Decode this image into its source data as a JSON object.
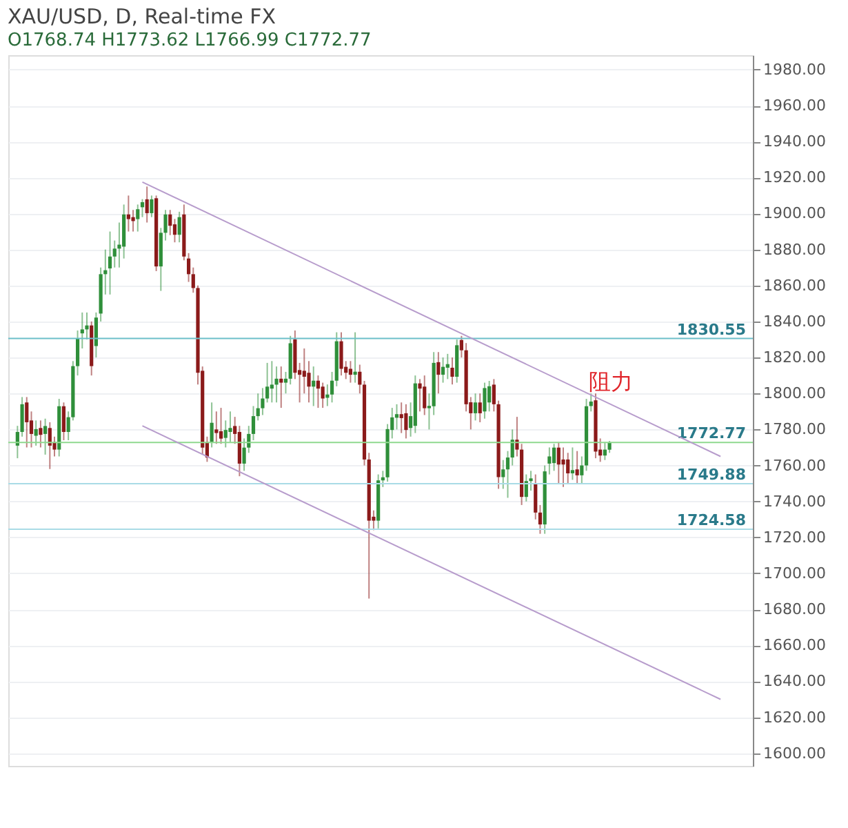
{
  "chart_data": {
    "type": "candlestick",
    "title": "XAU/USD, D, Real-time FX",
    "subtitle": "O1768.74  H1773.62  L1766.99  C1772.77",
    "categories": [
      null,
      null,
      null,
      null,
      null,
      null,
      null,
      null,
      null,
      null,
      null,
      null,
      null,
      null,
      null,
      null,
      null,
      null,
      null,
      null,
      null,
      null,
      null,
      null,
      null,
      null,
      null,
      null,
      null,
      null,
      null,
      null,
      null,
      null,
      null,
      null,
      null,
      null,
      null,
      null,
      null,
      null,
      null,
      null,
      null,
      null,
      null,
      null,
      null,
      null,
      null,
      null,
      null,
      null,
      null,
      null,
      null,
      null,
      null,
      null,
      null,
      null,
      null,
      null,
      null,
      null,
      null,
      null,
      null,
      null,
      null,
      null,
      null,
      null,
      null,
      null,
      null,
      null,
      null,
      null,
      null,
      null,
      null,
      null,
      null,
      null,
      null,
      null,
      null,
      null,
      null,
      null,
      null,
      null,
      null,
      null,
      null,
      null,
      null,
      null,
      null,
      null,
      null,
      null,
      null,
      null,
      null,
      null,
      null,
      null,
      null,
      null,
      null,
      null,
      null,
      null,
      null,
      null,
      null,
      null,
      null,
      null,
      null,
      null,
      null,
      null,
      null,
      null,
      null,
      null,
      null,
      null,
      null,
      null,
      null,
      null,
      null,
      null,
      null,
      null,
      null,
      null,
      null,
      null,
      null,
      null,
      null,
      null,
      null,
      null,
      null,
      null,
      null,
      null,
      null,
      null,
      null,
      null
    ],
    "ohlc": [
      [
        1771,
        1782,
        1764,
        1778.6
      ],
      [
        1778.6,
        1798,
        1776,
        1794
      ],
      [
        1795,
        1798,
        1770,
        1784
      ],
      [
        1785,
        1790,
        1770,
        1777.5
      ],
      [
        1776.5,
        1785,
        1771,
        1780.2
      ],
      [
        1780.8,
        1785,
        1770,
        1777
      ],
      [
        1777.5,
        1786,
        1766,
        1781.9
      ],
      [
        1780.8,
        1784,
        1758,
        1771
      ],
      [
        1773,
        1776,
        1765,
        1768.8
      ],
      [
        1768.8,
        1797,
        1765,
        1792.9
      ],
      [
        1792.9,
        1795,
        1774,
        1778.6
      ],
      [
        1778.6,
        1790,
        1774,
        1786.8
      ],
      [
        1786.8,
        1818,
        1785,
        1815.2
      ],
      [
        1815.2,
        1835,
        1810,
        1830.6
      ],
      [
        1833.4,
        1845,
        1825,
        1835.6
      ],
      [
        1835.6,
        1845,
        1830,
        1837.8
      ],
      [
        1837.8,
        1840,
        1810,
        1815.2
      ],
      [
        1826.4,
        1845,
        1820,
        1842.2
      ],
      [
        1844.4,
        1870,
        1840,
        1866.3
      ],
      [
        1866.3,
        1880,
        1855,
        1868.5
      ],
      [
        1869.5,
        1890,
        1855,
        1876.1
      ],
      [
        1876.1,
        1885,
        1870,
        1880.5
      ],
      [
        1880.5,
        1895,
        1870,
        1882.7
      ],
      [
        1881.6,
        1905,
        1875,
        1899.5
      ],
      [
        1899.5,
        1910,
        1890,
        1896.9
      ],
      [
        1898,
        1902,
        1890,
        1895.8
      ],
      [
        1896.9,
        1905,
        1890,
        1902.4
      ],
      [
        1903.5,
        1908,
        1898,
        1906.3
      ],
      [
        1907.9,
        1915,
        1895,
        1900.2
      ],
      [
        1900.2,
        1910,
        1898,
        1907.9
      ],
      [
        1908.5,
        1910,
        1868,
        1870.6
      ],
      [
        1870.6,
        1892,
        1857,
        1889.3
      ],
      [
        1889.3,
        1902,
        1885,
        1899.5
      ],
      [
        1899.5,
        1902,
        1888,
        1893.2
      ],
      [
        1894,
        1897,
        1884,
        1888.2
      ],
      [
        1888.2,
        1901,
        1884,
        1898
      ],
      [
        1899.5,
        1905,
        1874,
        1876.1
      ],
      [
        1875,
        1878,
        1862,
        1866.3
      ],
      [
        1866.3,
        1870,
        1856,
        1858.6
      ],
      [
        1858.6,
        1860,
        1805,
        1811.5
      ],
      [
        1812.6,
        1815,
        1766,
        1769.9
      ],
      [
        1773,
        1776,
        1762,
        1764.4
      ],
      [
        1773,
        1795,
        1770,
        1783.7
      ],
      [
        1780,
        1790,
        1772,
        1778
      ],
      [
        1779,
        1792,
        1772,
        1774.9
      ],
      [
        1775.3,
        1785,
        1770,
        1779.7
      ],
      [
        1778.6,
        1790,
        1773,
        1780.8
      ],
      [
        1781.9,
        1787,
        1772,
        1777.5
      ],
      [
        1778.6,
        1782,
        1754,
        1761
      ],
      [
        1761,
        1775,
        1757,
        1769.9
      ],
      [
        1769.9,
        1782,
        1767,
        1777.5
      ],
      [
        1777.5,
        1793,
        1774,
        1787.4
      ],
      [
        1787.4,
        1800,
        1785,
        1791.8
      ],
      [
        1791.8,
        1803,
        1788,
        1797.2
      ],
      [
        1797.2,
        1817,
        1795,
        1803.8
      ],
      [
        1802.7,
        1818,
        1795,
        1804.9
      ],
      [
        1804.9,
        1815,
        1795,
        1808.2
      ],
      [
        1808.2,
        1815,
        1792,
        1806
      ],
      [
        1806,
        1812,
        1800,
        1808.2
      ],
      [
        1808.2,
        1832,
        1805,
        1827.9
      ],
      [
        1830.1,
        1835,
        1808,
        1811.5
      ],
      [
        1813,
        1817,
        1795,
        1810.4
      ],
      [
        1812.6,
        1825,
        1800,
        1809.3
      ],
      [
        1811.5,
        1818,
        1795,
        1803.8
      ],
      [
        1803.8,
        1815,
        1793,
        1807.1
      ],
      [
        1807.1,
        1810,
        1792,
        1802.7
      ],
      [
        1803.8,
        1806,
        1792,
        1797.2
      ],
      [
        1797.6,
        1805,
        1793,
        1799.4
      ],
      [
        1799.4,
        1812,
        1795,
        1807.1
      ],
      [
        1807.1,
        1834,
        1804,
        1829
      ],
      [
        1829,
        1834,
        1810,
        1813.7
      ],
      [
        1814.8,
        1818,
        1808,
        1811.5
      ],
      [
        1813.7,
        1818,
        1806,
        1810.4
      ],
      [
        1810.4,
        1834,
        1806,
        1812.1
      ],
      [
        1812.1,
        1816,
        1800,
        1804.9
      ],
      [
        1804.9,
        1807,
        1760,
        1763.3
      ],
      [
        1763.3,
        1767,
        1686,
        1729.3
      ],
      [
        1731.5,
        1735,
        1724,
        1729.3
      ],
      [
        1729.3,
        1755,
        1725,
        1751.7
      ],
      [
        1751.7,
        1757,
        1748,
        1753.4
      ],
      [
        1753.4,
        1783,
        1751,
        1780.2
      ],
      [
        1779.7,
        1792,
        1775,
        1786.7
      ],
      [
        1786.5,
        1794,
        1780,
        1788.5
      ],
      [
        1788.5,
        1795,
        1778,
        1786.3
      ],
      [
        1789,
        1794,
        1775,
        1779.7
      ],
      [
        1780.8,
        1795,
        1776,
        1787.4
      ],
      [
        1782,
        1810,
        1778,
        1805.6
      ],
      [
        1805.6,
        1808,
        1790,
        1802.7
      ],
      [
        1803.8,
        1810,
        1788,
        1791.8
      ],
      [
        1791.8,
        1800,
        1780,
        1793.1
      ],
      [
        1792.9,
        1823,
        1788,
        1817
      ],
      [
        1817.4,
        1823,
        1800,
        1810.4
      ],
      [
        1810.4,
        1820,
        1806,
        1814.8
      ],
      [
        1814.3,
        1822,
        1808,
        1816.3
      ],
      [
        1814.3,
        1820,
        1805,
        1809.3
      ],
      [
        1809.3,
        1830,
        1806,
        1826.8
      ],
      [
        1829.7,
        1832,
        1820,
        1824
      ],
      [
        1824,
        1828,
        1790,
        1794
      ],
      [
        1795.1,
        1798,
        1780,
        1789
      ],
      [
        1789,
        1800,
        1785,
        1795
      ],
      [
        1795,
        1800,
        1784,
        1789
      ],
      [
        1790,
        1806,
        1786,
        1803
      ],
      [
        1795,
        1807,
        1790,
        1804
      ],
      [
        1804.9,
        1808,
        1790,
        1794
      ],
      [
        1794,
        1796,
        1747,
        1753.5
      ],
      [
        1753.5,
        1763,
        1747,
        1757.8
      ],
      [
        1757.8,
        1768,
        1742,
        1764.4
      ],
      [
        1764.4,
        1780,
        1760,
        1774.3
      ],
      [
        1774.3,
        1787,
        1765,
        1768.8
      ],
      [
        1768.8,
        1772,
        1738,
        1742.5
      ],
      [
        1742.5,
        1755,
        1740,
        1751.3
      ],
      [
        1751.3,
        1757,
        1746,
        1752.8
      ],
      [
        1750.2,
        1755,
        1730,
        1733.8
      ],
      [
        1733.8,
        1738,
        1722,
        1727.2
      ],
      [
        1727.2,
        1760,
        1722,
        1756.7
      ],
      [
        1761,
        1770,
        1755,
        1765
      ],
      [
        1761.3,
        1772,
        1757,
        1769.9
      ],
      [
        1769.9,
        1773,
        1750,
        1760.5
      ],
      [
        1763.3,
        1770,
        1748,
        1760.5
      ],
      [
        1763.3,
        1767,
        1750,
        1755.6
      ],
      [
        1755.6,
        1770,
        1752,
        1757.4
      ],
      [
        1757.8,
        1768,
        1750,
        1754.5
      ],
      [
        1754.5,
        1765,
        1750,
        1760
      ],
      [
        1760,
        1797,
        1757,
        1792.9
      ],
      [
        1793,
        1800,
        1790,
        1795.5
      ],
      [
        1796.2,
        1800,
        1764,
        1767.7
      ],
      [
        1768.8,
        1775,
        1762,
        1765.5
      ],
      [
        1765.5,
        1773,
        1763,
        1768.8
      ],
      [
        1768.74,
        1773.62,
        1766.99,
        1772.77
      ],
      null,
      null,
      null,
      null,
      null,
      null,
      null,
      null,
      null,
      null,
      null,
      null,
      null,
      null,
      null,
      null,
      null,
      null,
      null,
      null,
      null,
      null,
      null,
      null,
      null,
      null,
      null,
      null,
      null
    ],
    "colors": [
      "#2f8f3a",
      "#2f8f3a",
      "#8b1a1a",
      "#8b1a1a",
      "#2f8f3a",
      "#8b1a1a",
      "#2f8f3a",
      "#8b1a1a",
      "#8b1a1a",
      "#2f8f3a",
      "#8b1a1a",
      "#2f8f3a",
      "#2f8f3a",
      "#2f8f3a",
      "#2f8f3a",
      "#2f8f3a",
      "#8b1a1a",
      "#2f8f3a",
      "#2f8f3a",
      "#2f8f3a",
      "#2f8f3a",
      "#2f8f3a",
      "#2f8f3a",
      "#2f8f3a",
      "#8b1a1a",
      "#8b1a1a",
      "#2f8f3a",
      "#2f8f3a",
      "#8b1a1a",
      "#2f8f3a",
      "#8b1a1a",
      "#2f8f3a",
      "#2f8f3a",
      "#8b1a1a",
      "#8b1a1a",
      "#2f8f3a",
      "#8b1a1a",
      "#8b1a1a",
      "#8b1a1a",
      "#8b1a1a",
      "#8b1a1a",
      "#8b1a1a",
      "#2f8f3a",
      "#8b1a1a",
      "#8b1a1a",
      "#2f8f3a",
      "#2f8f3a",
      "#8b1a1a",
      "#8b1a1a",
      "#2f8f3a",
      "#2f8f3a",
      "#2f8f3a",
      "#2f8f3a",
      "#2f8f3a",
      "#2f8f3a",
      "#2f8f3a",
      "#2f8f3a",
      "#8b1a1a",
      "#2f8f3a",
      "#2f8f3a",
      "#8b1a1a",
      "#8b1a1a",
      "#8b1a1a",
      "#8b1a1a",
      "#2f8f3a",
      "#8b1a1a",
      "#8b1a1a",
      "#2f8f3a",
      "#2f8f3a",
      "#2f8f3a",
      "#8b1a1a",
      "#8b1a1a",
      "#8b1a1a",
      "#2f8f3a",
      "#8b1a1a",
      "#8b1a1a",
      "#8b1a1a",
      "#8b1a1a",
      "#2f8f3a",
      "#2f8f3a",
      "#2f8f3a",
      "#2f8f3a",
      "#2f8f3a",
      "#8b1a1a",
      "#8b1a1a",
      "#2f8f3a",
      "#2f8f3a",
      "#8b1a1a",
      "#8b1a1a",
      "#2f8f3a",
      "#2f8f3a",
      "#8b1a1a",
      "#2f8f3a",
      "#2f8f3a",
      "#8b1a1a",
      "#2f8f3a",
      "#8b1a1a",
      "#8b1a1a",
      "#8b1a1a",
      "#2f8f3a",
      "#8b1a1a",
      "#2f8f3a",
      "#2f8f3a",
      "#8b1a1a",
      "#8b1a1a",
      "#2f8f3a",
      "#2f8f3a",
      "#2f8f3a",
      "#8b1a1a",
      "#8b1a1a",
      "#2f8f3a",
      "#2f8f3a",
      "#8b1a1a",
      "#8b1a1a",
      "#2f8f3a",
      "#2f8f3a",
      "#2f8f3a",
      "#8b1a1a",
      "#8b1a1a",
      "#8b1a1a",
      "#2f8f3a",
      "#8b1a1a",
      "#2f8f3a",
      "#2f8f3a",
      "#2f8f3a",
      "#8b1a1a",
      "#8b1a1a",
      "#2f8f3a",
      "#2f8f3a",
      null,
      null,
      null,
      null,
      null,
      null,
      null,
      null,
      null,
      null,
      null,
      null,
      null,
      null,
      null,
      null,
      null,
      null,
      null,
      null,
      null,
      null,
      null,
      null,
      null,
      null,
      null,
      null,
      null
    ],
    "series": [
      {
        "type": "line",
        "color": "#b79ccc",
        "values": [
          null,
          null,
          null,
          null,
          null,
          null,
          null,
          null,
          null,
          null,
          null,
          null,
          null,
          null,
          null,
          null,
          null,
          null,
          null,
          null,
          null,
          null,
          null,
          null,
          null,
          null,
          null,
          1917.5,
          null,
          null,
          null,
          null,
          null,
          null,
          null,
          null,
          null,
          null,
          null,
          null,
          null,
          null,
          null,
          null,
          null,
          null,
          null,
          null,
          null,
          null,
          null,
          null,
          null,
          null,
          null,
          null,
          null,
          null,
          null,
          null,
          null,
          null,
          null,
          null,
          null,
          null,
          null,
          null,
          null,
          null,
          null,
          null,
          null,
          null,
          null,
          null,
          null,
          null,
          null,
          null,
          null,
          null,
          null,
          null,
          null,
          null,
          null,
          null,
          null,
          null,
          null,
          null,
          null,
          null,
          null,
          null,
          null,
          null,
          null,
          null,
          null,
          null,
          null,
          null,
          null,
          null,
          null,
          null,
          null,
          null,
          null,
          null,
          null,
          null,
          null,
          null,
          null,
          null,
          null,
          null,
          null,
          null,
          null,
          null,
          null,
          null,
          null,
          null,
          null,
          null,
          null,
          null,
          null,
          null,
          null,
          null,
          null,
          null,
          null,
          null,
          null,
          null,
          null,
          null,
          null,
          null,
          null,
          null,
          null,
          null,
          null,
          null,
          1765,
          null,
          null,
          null,
          null,
          null
        ]
      },
      {
        "type": "line",
        "color": "#b79ccc",
        "values": [
          null,
          null,
          null,
          null,
          null,
          null,
          null,
          null,
          null,
          null,
          null,
          null,
          null,
          null,
          null,
          null,
          null,
          null,
          null,
          null,
          null,
          null,
          null,
          null,
          null,
          null,
          null,
          1782,
          null,
          null,
          null,
          null,
          null,
          null,
          null,
          null,
          null,
          null,
          null,
          null,
          null,
          null,
          null,
          null,
          null,
          null,
          null,
          null,
          null,
          null,
          null,
          null,
          null,
          null,
          null,
          null,
          null,
          null,
          null,
          null,
          null,
          null,
          null,
          null,
          null,
          null,
          null,
          null,
          null,
          null,
          null,
          null,
          null,
          null,
          null,
          null,
          null,
          null,
          null,
          null,
          null,
          null,
          null,
          null,
          null,
          null,
          null,
          null,
          null,
          null,
          null,
          null,
          null,
          null,
          null,
          null,
          null,
          null,
          null,
          null,
          null,
          null,
          null,
          null,
          null,
          null,
          null,
          null,
          null,
          null,
          null,
          null,
          null,
          null,
          null,
          null,
          null,
          null,
          null,
          null,
          null,
          null,
          null,
          null,
          null,
          null,
          null,
          null,
          null,
          null,
          null,
          null,
          null,
          null,
          null,
          null,
          null,
          null,
          null,
          null,
          null,
          null,
          null,
          null,
          null,
          null,
          null,
          null,
          null,
          null,
          null,
          null,
          1630,
          null,
          null,
          null,
          null,
          null
        ]
      }
    ],
    "ref_lines": [
      {
        "axis": "y",
        "value": 1830.55,
        "label": "1830.55",
        "color": "#6cbfc9"
      },
      {
        "axis": "y",
        "value": 1772.77,
        "label": "1772.77",
        "color": "#8fd98f"
      },
      {
        "axis": "y",
        "value": 1749.88,
        "label": "1749.88",
        "color": "#a9dbe6"
      },
      {
        "axis": "y",
        "value": 1724.58,
        "label": "1724.58",
        "color": "#a9dbe6"
      }
    ],
    "annotations": [
      "阻力"
    ],
    "ylim": [
      1593,
      1988
    ],
    "yticks": [
      {
        "value": 1600,
        "label": "1600.00"
      },
      {
        "value": 1620,
        "label": "1620.00"
      },
      {
        "value": 1640,
        "label": "1640.00"
      },
      {
        "value": 1660,
        "label": "1660.00"
      },
      {
        "value": 1680,
        "label": "1680.00"
      },
      {
        "value": 1700,
        "label": "1700.00"
      },
      {
        "value": 1720,
        "label": "1720.00"
      },
      {
        "value": 1740,
        "label": "1740.00"
      },
      {
        "value": 1760,
        "label": "1760.00"
      },
      {
        "value": 1780,
        "label": "1780.00"
      },
      {
        "value": 1800,
        "label": "1800.00"
      },
      {
        "value": 1820,
        "label": "1820.00"
      },
      {
        "value": 1840,
        "label": "1840.00"
      },
      {
        "value": 1860,
        "label": "1860.00"
      },
      {
        "value": 1880,
        "label": "1880.00"
      },
      {
        "value": 1900,
        "label": "1900.00"
      },
      {
        "value": 1920,
        "label": "1920.00"
      },
      {
        "value": 1940,
        "label": "1940.00"
      },
      {
        "value": 1960,
        "label": "1960.00"
      },
      {
        "value": 1980,
        "label": "1980.00"
      }
    ],
    "grid": "y",
    "tick_labels": "y"
  }
}
